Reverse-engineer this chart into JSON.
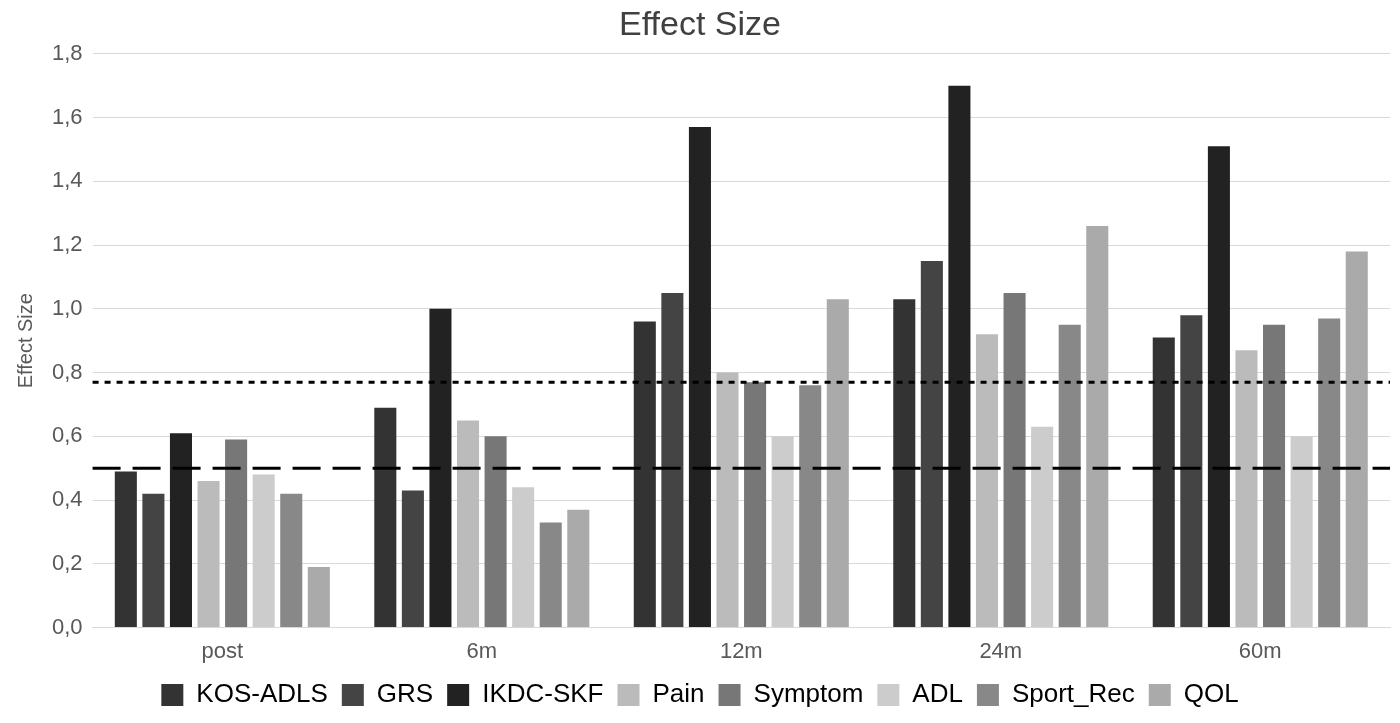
{
  "chart_data": {
    "type": "bar",
    "title": "Effect Size",
    "ylabel": "Effect Size",
    "categories": [
      "post",
      "6m",
      "12m",
      "24m",
      "60m"
    ],
    "series": [
      {
        "name": "KOS-ADLS",
        "color": "#333333",
        "values": [
          0.49,
          0.69,
          0.96,
          1.03,
          0.91
        ]
      },
      {
        "name": "GRS",
        "color": "#444444",
        "values": [
          0.42,
          0.43,
          1.05,
          1.15,
          0.98
        ]
      },
      {
        "name": "IKDC-SKF",
        "color": "#222222",
        "values": [
          0.61,
          1.0,
          1.57,
          1.7,
          1.51
        ]
      },
      {
        "name": "Pain",
        "color": "#bbbbbb",
        "values": [
          0.46,
          0.65,
          0.8,
          0.92,
          0.87
        ]
      },
      {
        "name": "Symptom",
        "color": "#777777",
        "values": [
          0.59,
          0.6,
          0.77,
          1.05,
          0.95
        ]
      },
      {
        "name": "ADL",
        "color": "#cccccc",
        "values": [
          0.48,
          0.44,
          0.6,
          0.63,
          0.6
        ]
      },
      {
        "name": "Sport_Rec",
        "color": "#888888",
        "values": [
          0.42,
          0.33,
          0.76,
          0.95,
          0.97
        ]
      },
      {
        "name": "QOL",
        "color": "#aaaaaa",
        "values": [
          0.19,
          0.37,
          1.03,
          1.26,
          1.18
        ]
      }
    ],
    "ylim": [
      0,
      1.8
    ],
    "yticks": [
      {
        "value": 0,
        "label": "0,0"
      },
      {
        "value": 0.2,
        "label": "0,2"
      },
      {
        "value": 0.4,
        "label": "0,4"
      },
      {
        "value": 0.6,
        "label": "0,6"
      },
      {
        "value": 0.8,
        "label": "0,8"
      },
      {
        "value": 1,
        "label": "1,0"
      },
      {
        "value": 1.2,
        "label": "1,2"
      },
      {
        "value": 1.4,
        "label": "1,4"
      },
      {
        "value": 1.6,
        "label": "1,6"
      },
      {
        "value": 1.8,
        "label": "1,8"
      }
    ],
    "grid": "y",
    "legend": "bottom",
    "ref_lines": [
      {
        "axis": "y",
        "value": 0.5,
        "line_style": "dashed",
        "color": "#000000"
      },
      {
        "axis": "y",
        "value": 0.77,
        "line_style": "dotted",
        "color": "#000000"
      }
    ]
  }
}
